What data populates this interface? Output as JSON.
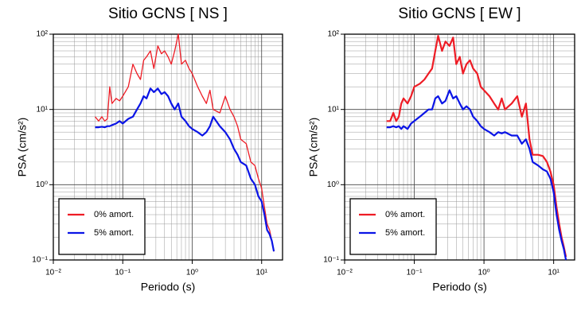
{
  "chart_data": [
    {
      "type": "line",
      "title": "Sitio GCNS [ NS ]",
      "x_label": "Periodo (s)",
      "y_label": "PSA (cm/s²)",
      "log_x": true,
      "log_y": true,
      "grid": true,
      "legend": "lower left",
      "x": [
        0.04,
        0.045,
        0.05,
        0.055,
        0.06,
        0.065,
        0.07,
        0.08,
        0.09,
        0.1,
        0.12,
        0.14,
        0.16,
        0.18,
        0.2,
        0.22,
        0.25,
        0.28,
        0.32,
        0.36,
        0.4,
        0.45,
        0.5,
        0.56,
        0.63,
        0.7,
        0.8,
        0.9,
        1,
        1.2,
        1.4,
        1.6,
        1.8,
        2,
        2.5,
        3,
        3.5,
        4,
        4.5,
        5,
        6,
        7,
        8,
        9,
        10,
        11,
        12,
        13,
        14,
        15
      ],
      "xlim": [
        0.01,
        20
      ],
      "xticks": [
        {
          "value": 0.01,
          "label": "10⁻²"
        },
        {
          "value": 0.1,
          "label": "10⁻¹"
        },
        {
          "value": 1,
          "label": "10⁰"
        },
        {
          "value": 10,
          "label": "10¹"
        }
      ],
      "ylim": [
        0.1,
        100
      ],
      "yticks": [
        {
          "value": 0.1,
          "label": "10⁻¹"
        },
        {
          "value": 1,
          "label": "10⁰"
        },
        {
          "value": 10,
          "label": "10¹"
        },
        {
          "value": 100,
          "label": "10²"
        }
      ],
      "series": [
        {
          "name": "0% amort.",
          "color": "#ee1c25",
          "width": 1.3,
          "values": [
            8,
            7,
            8,
            7,
            7.5,
            20,
            12,
            14,
            13,
            15,
            20,
            40,
            30,
            25,
            45,
            50,
            60,
            35,
            70,
            55,
            60,
            50,
            40,
            60,
            100,
            40,
            45,
            35,
            30,
            20,
            15,
            12,
            18,
            10,
            9,
            15,
            10,
            8,
            6,
            4,
            3.5,
            2,
            1.8,
            1.2,
            0.9,
            0.5,
            0.3,
            0.25,
            0.18,
            0.13
          ]
        },
        {
          "name": "5% amort.",
          "color": "#0a14e6",
          "width": 2.2,
          "values": [
            5.8,
            5.8,
            5.9,
            5.8,
            6,
            6,
            6.2,
            6.5,
            7,
            6.5,
            7.5,
            8,
            10,
            12,
            15,
            14,
            19,
            17,
            19,
            16,
            17,
            15,
            12,
            10,
            12,
            8,
            7,
            6,
            5.5,
            5,
            4.5,
            5,
            6,
            8,
            6,
            5,
            4,
            3,
            2.5,
            2,
            1.8,
            1.2,
            1,
            0.7,
            0.6,
            0.4,
            0.25,
            0.22,
            0.18,
            0.13
          ]
        }
      ]
    },
    {
      "type": "line",
      "title": "Sitio GCNS [ EW ]",
      "x_label": "Periodo (s)",
      "y_label": "PSA (cm/s²)",
      "log_x": true,
      "log_y": true,
      "grid": true,
      "legend": "lower left",
      "x": [
        0.04,
        0.045,
        0.05,
        0.055,
        0.06,
        0.065,
        0.07,
        0.08,
        0.09,
        0.1,
        0.12,
        0.14,
        0.16,
        0.18,
        0.2,
        0.22,
        0.25,
        0.28,
        0.32,
        0.36,
        0.4,
        0.45,
        0.5,
        0.56,
        0.63,
        0.7,
        0.8,
        0.9,
        1,
        1.2,
        1.4,
        1.6,
        1.8,
        2,
        2.5,
        3,
        3.5,
        4,
        4.5,
        5,
        6,
        7,
        8,
        9,
        10,
        11,
        12,
        13,
        14,
        15
      ],
      "xlim": [
        0.01,
        20
      ],
      "xticks": [
        {
          "value": 0.01,
          "label": "10⁻²"
        },
        {
          "value": 0.1,
          "label": "10⁻¹"
        },
        {
          "value": 1,
          "label": "10⁰"
        },
        {
          "value": 10,
          "label": "10¹"
        }
      ],
      "ylim": [
        0.1,
        100
      ],
      "yticks": [
        {
          "value": 0.1,
          "label": "10⁻¹"
        },
        {
          "value": 1,
          "label": "10⁰"
        },
        {
          "value": 10,
          "label": "10¹"
        },
        {
          "value": 100,
          "label": "10²"
        }
      ],
      "series": [
        {
          "name": "0% amort.",
          "color": "#ee1c25",
          "width": 2.2,
          "values": [
            7,
            7,
            9,
            7,
            8,
            12,
            14,
            12,
            15,
            20,
            22,
            25,
            30,
            35,
            60,
            95,
            60,
            80,
            70,
            90,
            40,
            50,
            30,
            40,
            45,
            35,
            30,
            20,
            18,
            15,
            12,
            10,
            14,
            10,
            12,
            15,
            8,
            12,
            4,
            2.5,
            2.5,
            2.4,
            2,
            1.5,
            1,
            0.5,
            0.3,
            0.2,
            0.15,
            0.11
          ]
        },
        {
          "name": "5% amort.",
          "color": "#0a14e6",
          "width": 2.2,
          "values": [
            5.8,
            5.8,
            6,
            5.8,
            6,
            5.5,
            6,
            5.5,
            6.5,
            7,
            8,
            9,
            10,
            10,
            14,
            15,
            12,
            13,
            18,
            14,
            15,
            12,
            10,
            11,
            10,
            8,
            7,
            6,
            5.5,
            5,
            4.5,
            5,
            4.8,
            5,
            4.5,
            4.5,
            3.5,
            4,
            3,
            2,
            1.8,
            1.6,
            1.5,
            1.2,
            0.8,
            0.4,
            0.25,
            0.18,
            0.14,
            0.1
          ]
        }
      ]
    }
  ]
}
